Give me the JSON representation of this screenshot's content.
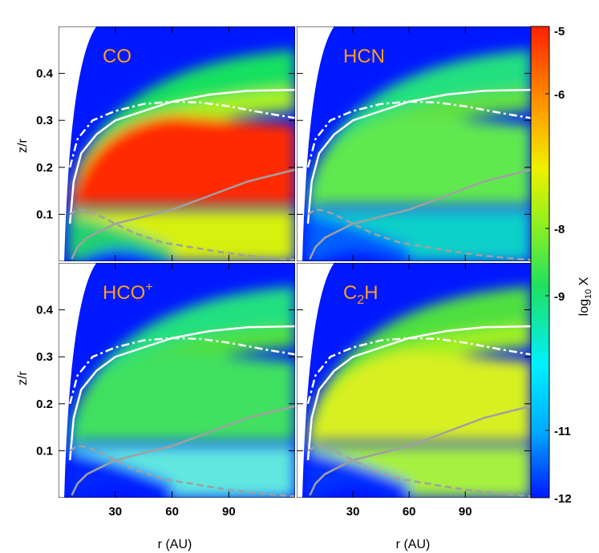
{
  "chart_data": {
    "type": "heatmap",
    "xlabel": "r (AU)",
    "ylabel": "z/r",
    "xlim": [
      0,
      125
    ],
    "ylim": [
      0,
      0.5
    ],
    "xticks": [
      "30",
      "60",
      "90"
    ],
    "xtick_values": [
      30,
      60,
      90
    ],
    "yticks": [
      "0.1",
      "0.2",
      "0.3",
      "0.4"
    ],
    "ytick_values": [
      0.1,
      0.2,
      0.3,
      0.4
    ],
    "panels": [
      {
        "label_main": "CO",
        "label_sub": "",
        "label_sup": ""
      },
      {
        "label_main": "HCN",
        "label_sub": "",
        "label_sup": ""
      },
      {
        "label_main": "HCO",
        "label_sub": "",
        "label_sup": "+"
      },
      {
        "label_main": "C",
        "label_sub": "2",
        "label_sup": "H"
      }
    ],
    "colorbar": {
      "label_main": "log",
      "label_sub": "10",
      "label_rest": " X",
      "tick_labels": [
        "-5",
        "-6",
        "-8",
        "-9",
        "-11",
        "-12"
      ],
      "tick_values": [
        -5,
        -6,
        -8,
        -9,
        -11,
        -12
      ],
      "range": [
        -12,
        -5
      ],
      "colors": [
        "#0018FF",
        "#00AAFF",
        "#00F0FF",
        "#20E060",
        "#90F020",
        "#F0F000",
        "#FFA000",
        "#FF2000"
      ]
    },
    "contours": {
      "white_solid": {
        "r": [
          6,
          8,
          12,
          20,
          30,
          45,
          60,
          80,
          100,
          125
        ],
        "z": [
          0.08,
          0.17,
          0.23,
          0.27,
          0.3,
          0.32,
          0.34,
          0.355,
          0.363,
          0.365
        ]
      },
      "white_dashdot": {
        "r": [
          6,
          10,
          18,
          30,
          45,
          60,
          75,
          90,
          110,
          125
        ],
        "z": [
          0.2,
          0.26,
          0.3,
          0.32,
          0.335,
          0.34,
          0.338,
          0.33,
          0.315,
          0.305
        ]
      },
      "gray_solid": {
        "r": [
          7,
          10,
          15,
          20,
          30,
          40,
          50,
          60,
          70,
          80,
          90,
          100,
          110,
          125
        ],
        "z": [
          0.005,
          0.03,
          0.05,
          0.06,
          0.08,
          0.09,
          0.1,
          0.11,
          0.125,
          0.14,
          0.155,
          0.17,
          0.18,
          0.195
        ]
      },
      "gray_dashed": {
        "r": [
          6,
          10,
          15,
          20,
          30,
          40,
          55,
          70,
          85,
          100,
          115,
          125
        ],
        "z": [
          0.1,
          0.11,
          0.108,
          0.1,
          0.08,
          0.06,
          0.04,
          0.03,
          0.02,
          0.012,
          0.006,
          0.003
        ]
      }
    }
  }
}
